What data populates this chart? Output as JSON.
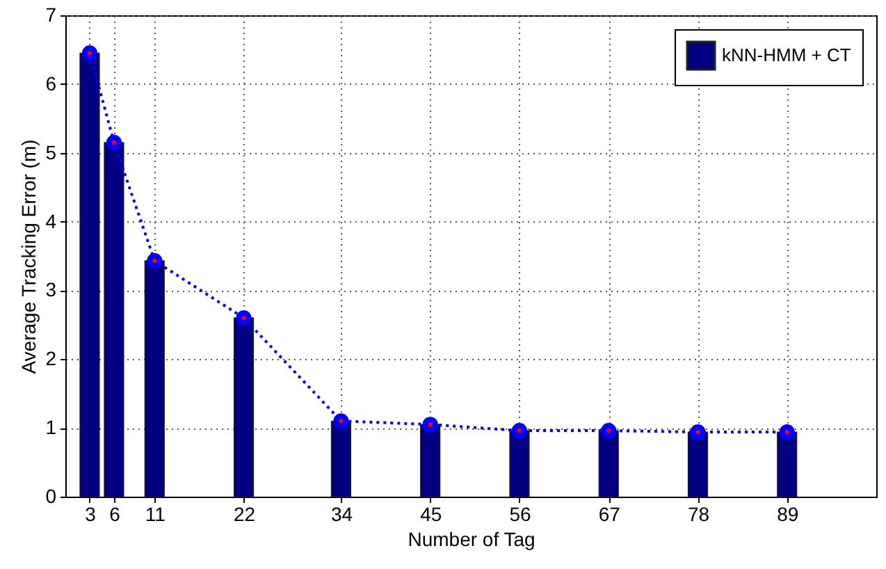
{
  "chart_data": {
    "type": "bar",
    "xlabel": "Number of Tag",
    "ylabel": "Average Tracking Error (m)",
    "x": [
      3,
      6,
      11,
      22,
      34,
      45,
      56,
      67,
      78,
      89
    ],
    "series": [
      {
        "name": "kNN-HMM + CT",
        "color": "#000080",
        "values": [
          6.45,
          5.15,
          3.43,
          2.6,
          1.1,
          1.05,
          0.96,
          0.96,
          0.94,
          0.94
        ]
      },
      {
        "type": "line",
        "color": "#0000ff",
        "line_style": "dotted",
        "marker": "circle",
        "values": [
          6.45,
          5.15,
          3.43,
          2.6,
          1.1,
          1.05,
          0.96,
          0.96,
          0.94,
          0.94
        ]
      }
    ],
    "xlim": [
      0,
      100
    ],
    "xticks": [
      3,
      6,
      11,
      22,
      34,
      45,
      56,
      67,
      78,
      89
    ],
    "ylim": [
      0,
      7
    ],
    "yticks": [
      0,
      1,
      2,
      3,
      4,
      5,
      6,
      7
    ],
    "grid": true,
    "legend": "top right"
  }
}
